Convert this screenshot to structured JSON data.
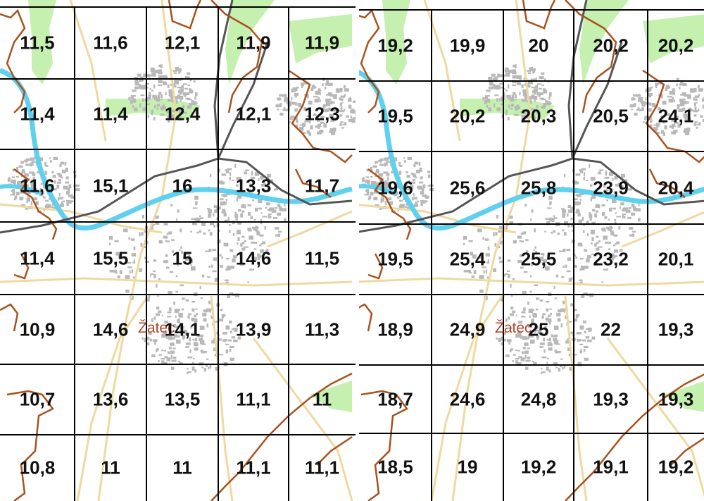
{
  "colors": {
    "boundary": "#a8521e",
    "river": "#5fd0ee",
    "green": "#c5f0b0",
    "road": "#f0d9a0",
    "rail": "#555555",
    "urban": "#b8b8b8",
    "grid": "#000000",
    "town_label": "#b2472a"
  },
  "panels": [
    {
      "id": "left",
      "town_label": "Žatec",
      "grid": [
        [
          "11,5",
          "11,6",
          "12,1",
          "11,9",
          "11,9"
        ],
        [
          "11,4",
          "11,4",
          "12,4",
          "12,1",
          "12,3"
        ],
        [
          "11,6",
          "15,1",
          "16",
          "13,3",
          "11,7"
        ],
        [
          "11,4",
          "15,5",
          "15",
          "14,6",
          "11,5"
        ],
        [
          "10,9",
          "14,6",
          "14,1",
          "13,9",
          "11,3"
        ],
        [
          "10,7",
          "13,6",
          "13,5",
          "11,1",
          "11"
        ],
        [
          "10,8",
          "11",
          "11",
          "11,1",
          "11,1"
        ]
      ]
    },
    {
      "id": "right",
      "town_label": "Žatec",
      "grid": [
        [
          "19,2",
          "19,9",
          "20",
          "20,2",
          "20,2"
        ],
        [
          "19,5",
          "20,2",
          "20,3",
          "20,5",
          "24,1"
        ],
        [
          "19,6",
          "25,6",
          "25,8",
          "23,9",
          "20,4"
        ],
        [
          "19,5",
          "25,4",
          "25,5",
          "23,2",
          "20,1"
        ],
        [
          "18,9",
          "24,9",
          "25",
          "22",
          "19,3"
        ],
        [
          "18,7",
          "24,6",
          "24,8",
          "19,3",
          "19,3"
        ],
        [
          "18,5",
          "19",
          "19,2",
          "19,1",
          "19,2"
        ]
      ]
    }
  ]
}
